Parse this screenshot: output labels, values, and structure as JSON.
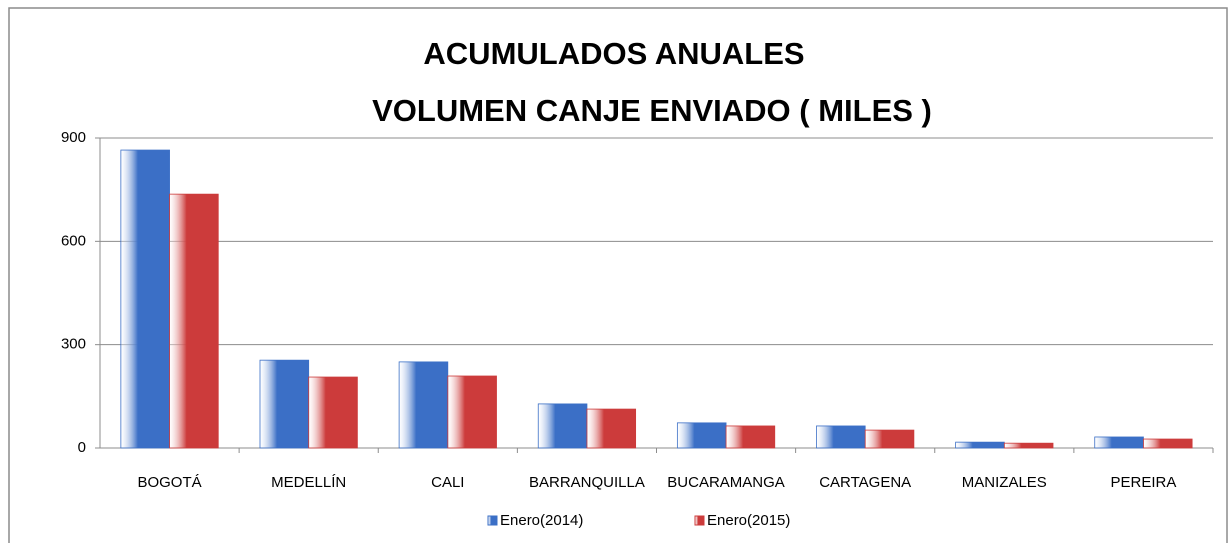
{
  "chart_data": {
    "type": "bar",
    "title": "ACUMULADOS  ANUALES",
    "subtitle": "VOLUMEN CANJE ENVIADO  ( MILES )",
    "categories": [
      "BOGOTÁ",
      "MEDELLÍN",
      "CALI",
      "BARRANQUILLA",
      "BUCARAMANGA",
      "CARTAGENA",
      "MANIZALES",
      "PEREIRA"
    ],
    "series": [
      {
        "name": "Enero(2014)",
        "color": "#3b6fc6",
        "values": [
          865,
          255,
          250,
          128,
          73,
          64,
          17,
          32
        ]
      },
      {
        "name": "Enero(2015)",
        "color": "#cc3b3b",
        "values": [
          737,
          206,
          209,
          113,
          64,
          52,
          14,
          26
        ]
      }
    ],
    "ylim": [
      0,
      900
    ],
    "yticks": [
      0,
      300,
      600,
      900
    ],
    "grid": true,
    "legend": "bottom"
  }
}
